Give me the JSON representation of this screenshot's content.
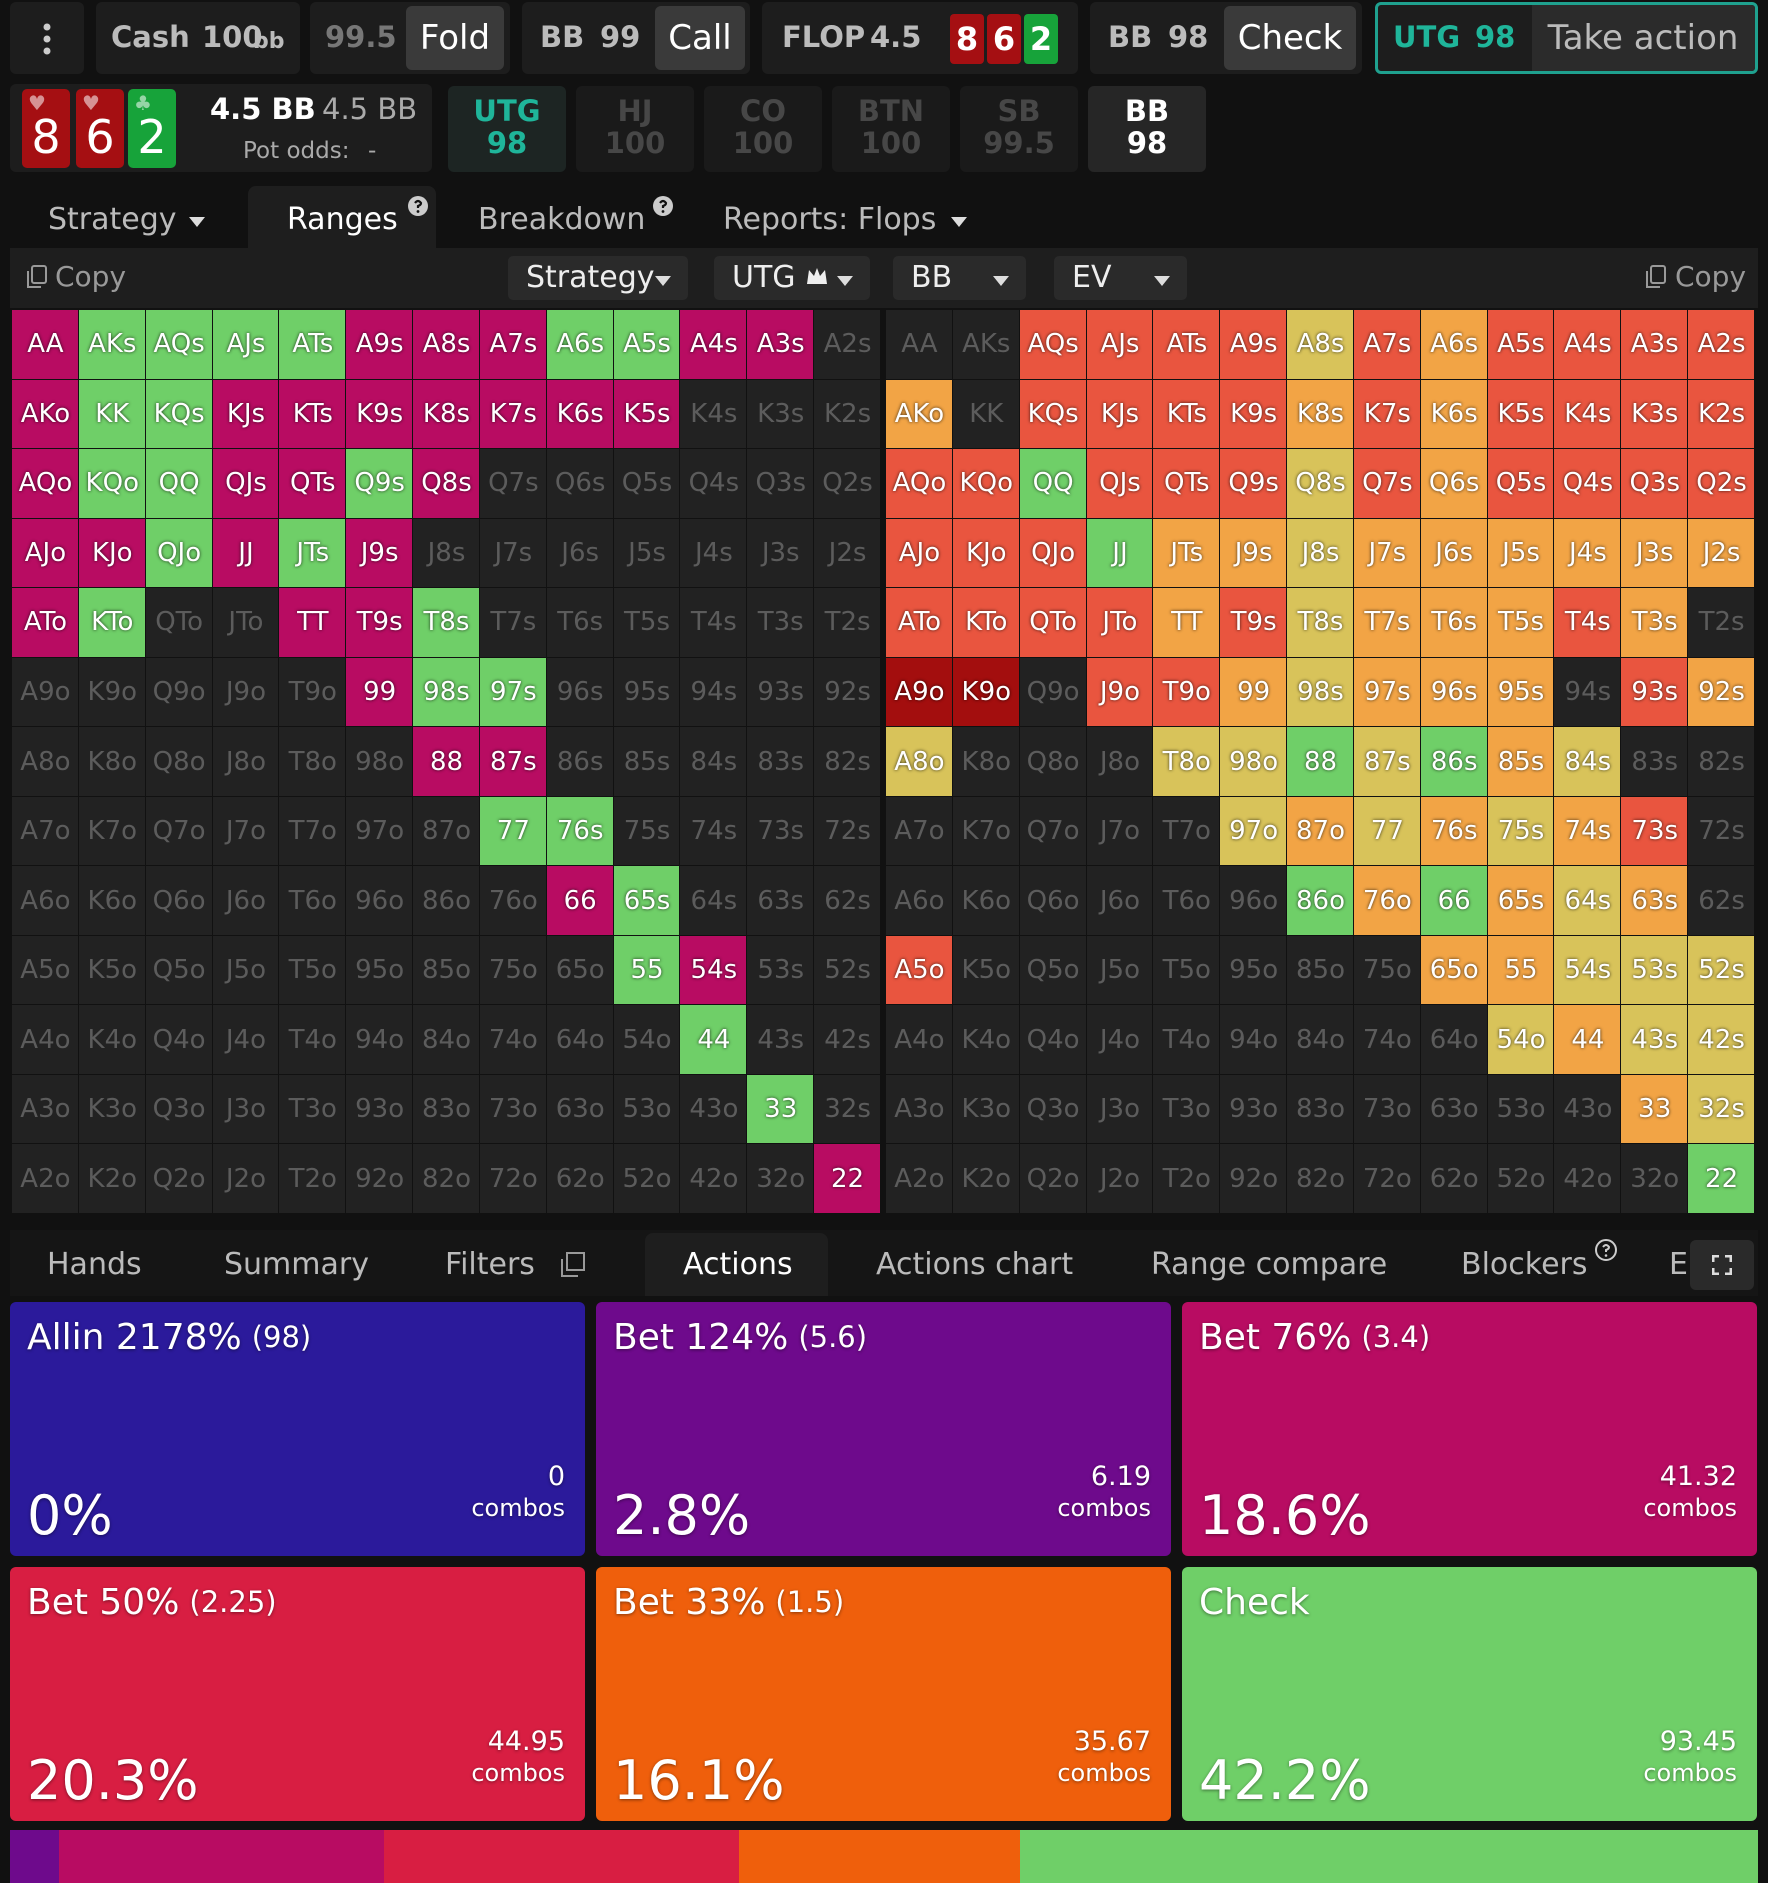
{
  "top_bar": {
    "cash_label": "Cash",
    "cash_stack": "100",
    "cash_unit": "bb",
    "fold_stack": "99.5",
    "fold": "Fold",
    "call_seat": "BB",
    "call_stack": "99",
    "call": "Call",
    "street": "FLOP",
    "street_pot": "4.5",
    "check_seat": "BB",
    "check_stack": "98",
    "check": "Check",
    "active_seat": "UTG",
    "active_stack": "98",
    "take_action": "Take action"
  },
  "board": [
    {
      "rank": "8",
      "suit": "♥",
      "color": "#a50f12"
    },
    {
      "rank": "6",
      "suit": "♥",
      "color": "#a50f12"
    },
    {
      "rank": "2",
      "suit": "♣",
      "color": "#17a33a"
    }
  ],
  "pot_info": {
    "pot": "4.5 BB",
    "pot_bb": "4.5 BB",
    "pot_odds_label": "Pot odds:",
    "pot_odds": "-"
  },
  "seats": [
    {
      "name": "UTG",
      "stack": "98",
      "color": "#1fb59a"
    },
    {
      "name": "HJ",
      "stack": "100",
      "color": "#474747"
    },
    {
      "name": "CO",
      "stack": "100",
      "color": "#474747"
    },
    {
      "name": "BTN",
      "stack": "100",
      "color": "#474747"
    },
    {
      "name": "SB",
      "stack": "99.5",
      "color": "#474747"
    },
    {
      "name": "BB",
      "stack": "98",
      "color": "#ffffff"
    }
  ],
  "tabs": [
    "Strategy",
    "Ranges",
    "Breakdown",
    "Reports: Flops"
  ],
  "toolbar": {
    "copy_left": "Copy",
    "view": "Strategy",
    "player": "UTG",
    "opponent": "BB",
    "metric": "EV",
    "copy_right": "Copy"
  },
  "hands": [
    [
      "AA",
      "AKs",
      "AQs",
      "AJs",
      "ATs",
      "A9s",
      "A8s",
      "A7s",
      "A6s",
      "A5s",
      "A4s",
      "A3s",
      "A2s"
    ],
    [
      "AKo",
      "KK",
      "KQs",
      "KJs",
      "KTs",
      "K9s",
      "K8s",
      "K7s",
      "K6s",
      "K5s",
      "K4s",
      "K3s",
      "K2s"
    ],
    [
      "AQo",
      "KQo",
      "QQ",
      "QJs",
      "QTs",
      "Q9s",
      "Q8s",
      "Q7s",
      "Q6s",
      "Q5s",
      "Q4s",
      "Q3s",
      "Q2s"
    ],
    [
      "AJo",
      "KJo",
      "QJo",
      "JJ",
      "JTs",
      "J9s",
      "J8s",
      "J7s",
      "J6s",
      "J5s",
      "J4s",
      "J3s",
      "J2s"
    ],
    [
      "ATo",
      "KTo",
      "QTo",
      "JTo",
      "TT",
      "T9s",
      "T8s",
      "T7s",
      "T6s",
      "T5s",
      "T4s",
      "T3s",
      "T2s"
    ],
    [
      "A9o",
      "K9o",
      "Q9o",
      "J9o",
      "T9o",
      "99",
      "98s",
      "97s",
      "96s",
      "95s",
      "94s",
      "93s",
      "92s"
    ],
    [
      "A8o",
      "K8o",
      "Q8o",
      "J8o",
      "T8o",
      "98o",
      "88",
      "87s",
      "86s",
      "85s",
      "84s",
      "83s",
      "82s"
    ],
    [
      "A7o",
      "K7o",
      "Q7o",
      "J7o",
      "T7o",
      "97o",
      "87o",
      "77",
      "76s",
      "75s",
      "74s",
      "73s",
      "72s"
    ],
    [
      "A6o",
      "K6o",
      "Q6o",
      "J6o",
      "T6o",
      "96o",
      "86o",
      "76o",
      "66",
      "65s",
      "64s",
      "63s",
      "62s"
    ],
    [
      "A5o",
      "K5o",
      "Q5o",
      "J5o",
      "T5o",
      "95o",
      "85o",
      "75o",
      "65o",
      "55",
      "54s",
      "53s",
      "52s"
    ],
    [
      "A4o",
      "K4o",
      "Q4o",
      "J4o",
      "T4o",
      "94o",
      "84o",
      "74o",
      "64o",
      "54o",
      "44",
      "43s",
      "42s"
    ],
    [
      "A3o",
      "K3o",
      "Q3o",
      "J3o",
      "T3o",
      "93o",
      "83o",
      "73o",
      "63o",
      "53o",
      "43o",
      "33",
      "32s"
    ],
    [
      "A2o",
      "K2o",
      "Q2o",
      "J2o",
      "T2o",
      "92o",
      "82o",
      "72o",
      "62o",
      "52o",
      "42o",
      "32o",
      "22"
    ]
  ],
  "strategy_colors": [
    [
      "#b80c62",
      "#6fcf68",
      "#6fcf68",
      "#6fcf68",
      "#6fcf68",
      "#b80c62",
      "#b80c62",
      "#b80c62",
      "#6fcf68",
      "#6fcf68",
      "#b80c62",
      "#b80c62",
      "#222222"
    ],
    [
      "#b80c62",
      "#6fcf68",
      "#6fcf68",
      "#b80c62",
      "#b80c62",
      "#b80c62",
      "#b80c62",
      "#b80c62",
      "#b80c62",
      "#b80c62",
      "#222222",
      "#222222",
      "#222222"
    ],
    [
      "#b80c62",
      "#6fcf68",
      "#6fcf68",
      "#b80c62",
      "#b80c62",
      "#6fcf68",
      "#b80c62",
      "#222222",
      "#222222",
      "#222222",
      "#222222",
      "#222222",
      "#222222"
    ],
    [
      "#b80c62",
      "#b80c62",
      "#6fcf68",
      "#b80c62",
      "#6fcf68",
      "#b80c62",
      "#222222",
      "#222222",
      "#222222",
      "#222222",
      "#222222",
      "#222222",
      "#222222"
    ],
    [
      "#b80c62",
      "#6fcf68",
      "#222222",
      "#222222",
      "#b80c62",
      "#b80c62",
      "#6fcf68",
      "#222222",
      "#222222",
      "#222222",
      "#222222",
      "#222222",
      "#222222"
    ],
    [
      "#222222",
      "#222222",
      "#222222",
      "#222222",
      "#222222",
      "#b80c62",
      "#6fcf68",
      "#6fcf68",
      "#222222",
      "#222222",
      "#222222",
      "#222222",
      "#222222"
    ],
    [
      "#222222",
      "#222222",
      "#222222",
      "#222222",
      "#222222",
      "#222222",
      "#b80c62",
      "#b80c62",
      "#222222",
      "#222222",
      "#222222",
      "#222222",
      "#222222"
    ],
    [
      "#222222",
      "#222222",
      "#222222",
      "#222222",
      "#222222",
      "#222222",
      "#222222",
      "#6fcf68",
      "#6fcf68",
      "#222222",
      "#222222",
      "#222222",
      "#222222"
    ],
    [
      "#222222",
      "#222222",
      "#222222",
      "#222222",
      "#222222",
      "#222222",
      "#222222",
      "#222222",
      "#b80c62",
      "#6fcf68",
      "#222222",
      "#222222",
      "#222222"
    ],
    [
      "#222222",
      "#222222",
      "#222222",
      "#222222",
      "#222222",
      "#222222",
      "#222222",
      "#222222",
      "#222222",
      "#6fcf68",
      "#b80c62",
      "#222222",
      "#222222"
    ],
    [
      "#222222",
      "#222222",
      "#222222",
      "#222222",
      "#222222",
      "#222222",
      "#222222",
      "#222222",
      "#222222",
      "#222222",
      "#6fcf68",
      "#222222",
      "#222222"
    ],
    [
      "#222222",
      "#222222",
      "#222222",
      "#222222",
      "#222222",
      "#222222",
      "#222222",
      "#222222",
      "#222222",
      "#222222",
      "#222222",
      "#6fcf68",
      "#222222"
    ],
    [
      "#222222",
      "#222222",
      "#222222",
      "#222222",
      "#222222",
      "#222222",
      "#222222",
      "#222222",
      "#222222",
      "#222222",
      "#222222",
      "#222222",
      "#b80c62"
    ]
  ],
  "ev_colors": [
    [
      "#222222",
      "#222222",
      "#e9553f",
      "#e9553f",
      "#e9553f",
      "#e9553f",
      "#d8c35a",
      "#e9553f",
      "#f2a445",
      "#e9553f",
      "#e9553f",
      "#e9553f",
      "#e9553f"
    ],
    [
      "#f2a445",
      "#222222",
      "#e9553f",
      "#e9553f",
      "#e9553f",
      "#e9553f",
      "#f2a445",
      "#e9553f",
      "#f2a445",
      "#e9553f",
      "#e9553f",
      "#e9553f",
      "#e9553f"
    ],
    [
      "#e9553f",
      "#e9553f",
      "#6fcf68",
      "#e9553f",
      "#e9553f",
      "#e9553f",
      "#d8c35a",
      "#e9553f",
      "#f2a445",
      "#e9553f",
      "#e9553f",
      "#e9553f",
      "#e9553f"
    ],
    [
      "#e9553f",
      "#e9553f",
      "#e9553f",
      "#6fcf68",
      "#f2a445",
      "#f2a445",
      "#d8c35a",
      "#f2a445",
      "#f2a445",
      "#f2a445",
      "#f2a445",
      "#f2a445",
      "#f2a445"
    ],
    [
      "#e9553f",
      "#e9553f",
      "#e9553f",
      "#e9553f",
      "#f2a445",
      "#e9553f",
      "#d8c35a",
      "#f2a445",
      "#f2a445",
      "#f2a445",
      "#e9553f",
      "#f2a445",
      "#222222"
    ],
    [
      "#a30e0e",
      "#a30e0e",
      "#222222",
      "#e9553f",
      "#e9553f",
      "#f2a445",
      "#d8c35a",
      "#f2a445",
      "#f2a445",
      "#f2a445",
      "#222222",
      "#e9553f",
      "#f2a445"
    ],
    [
      "#d8c35a",
      "#222222",
      "#222222",
      "#222222",
      "#d8c35a",
      "#d8c35a",
      "#6fcf68",
      "#d8c35a",
      "#6fcf68",
      "#f2a445",
      "#d8c35a",
      "#222222",
      "#222222"
    ],
    [
      "#222222",
      "#222222",
      "#222222",
      "#222222",
      "#222222",
      "#d8c35a",
      "#f2a445",
      "#d8c35a",
      "#f2a445",
      "#d8c35a",
      "#f2a445",
      "#e9553f",
      "#222222"
    ],
    [
      "#222222",
      "#222222",
      "#222222",
      "#222222",
      "#222222",
      "#222222",
      "#6fcf68",
      "#f2a445",
      "#6fcf68",
      "#f2a445",
      "#d8c35a",
      "#f2a445",
      "#222222"
    ],
    [
      "#e9553f",
      "#222222",
      "#222222",
      "#222222",
      "#222222",
      "#222222",
      "#222222",
      "#222222",
      "#f2a445",
      "#f2a445",
      "#d8c35a",
      "#d8c35a",
      "#d8c35a"
    ],
    [
      "#222222",
      "#222222",
      "#222222",
      "#222222",
      "#222222",
      "#222222",
      "#222222",
      "#222222",
      "#222222",
      "#d8c35a",
      "#f2a445",
      "#d8c35a",
      "#d8c35a"
    ],
    [
      "#222222",
      "#222222",
      "#222222",
      "#222222",
      "#222222",
      "#222222",
      "#222222",
      "#222222",
      "#222222",
      "#222222",
      "#222222",
      "#f2a445",
      "#d8c35a"
    ],
    [
      "#222222",
      "#222222",
      "#222222",
      "#222222",
      "#222222",
      "#222222",
      "#222222",
      "#222222",
      "#222222",
      "#222222",
      "#222222",
      "#222222",
      "#6fcf68"
    ]
  ],
  "bottom_tabs": [
    "Hands",
    "Summary",
    "Filters",
    "Actions",
    "Actions chart",
    "Range compare",
    "Blockers",
    "E"
  ],
  "actions": [
    {
      "name": "Allin 2178%",
      "size": "(98)",
      "value": 0,
      "value_label": "0%",
      "combos": "0",
      "combos_unit": "combos",
      "color": "#2b1a9b"
    },
    {
      "name": "Bet 124%",
      "size": "(5.6)",
      "value": 2.8,
      "value_label": "2.8%",
      "combos": "6.19",
      "combos_unit": "combos",
      "color": "#6e0a8c"
    },
    {
      "name": "Bet 76%",
      "size": "(3.4)",
      "value": 18.6,
      "value_label": "18.6%",
      "combos": "41.32",
      "combos_unit": "combos",
      "color": "#b80c62"
    },
    {
      "name": "Bet 50%",
      "size": "(2.25)",
      "value": 20.3,
      "value_label": "20.3%",
      "combos": "44.95",
      "combos_unit": "combos",
      "color": "#d81e42"
    },
    {
      "name": "Bet 33%",
      "size": "(1.5)",
      "value": 16.1,
      "value_label": "16.1%",
      "combos": "35.67",
      "combos_unit": "combos",
      "color": "#ef5f0c"
    },
    {
      "name": "Check",
      "size": null,
      "value": 42.2,
      "value_label": "42.2%",
      "combos": "93.45",
      "combos_unit": "combos",
      "color": "#6fcf68"
    }
  ]
}
